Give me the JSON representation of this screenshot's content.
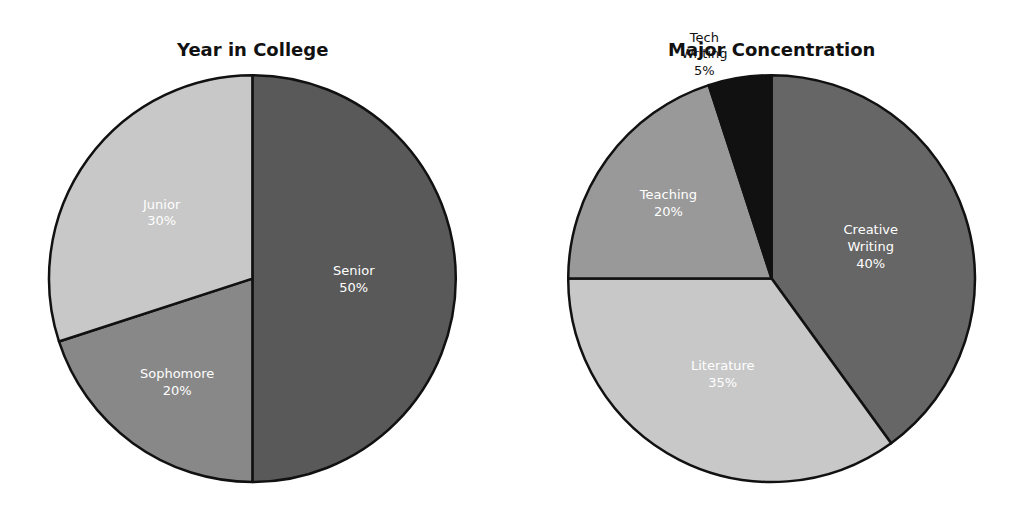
{
  "chart_data": [
    {
      "type": "pie",
      "title": "Year in College",
      "categories": [
        "Senior\n50%",
        "Sophomore\n20%",
        "Junior\n30%"
      ],
      "values": [
        50,
        20,
        30
      ],
      "colors": [
        "#595959",
        "#888888",
        "#c8c8c8"
      ]
    },
    {
      "type": "pie",
      "title": "Major Concentration",
      "categories": [
        "Creative\nWriting\n40%",
        "Literature\n35%",
        "Teaching\n20%",
        "Tech\nWriting\n5%"
      ],
      "values": [
        40,
        35,
        20,
        5
      ],
      "colors": [
        "#666666",
        "#c8c8c8",
        "#999999",
        "#111111"
      ]
    }
  ]
}
